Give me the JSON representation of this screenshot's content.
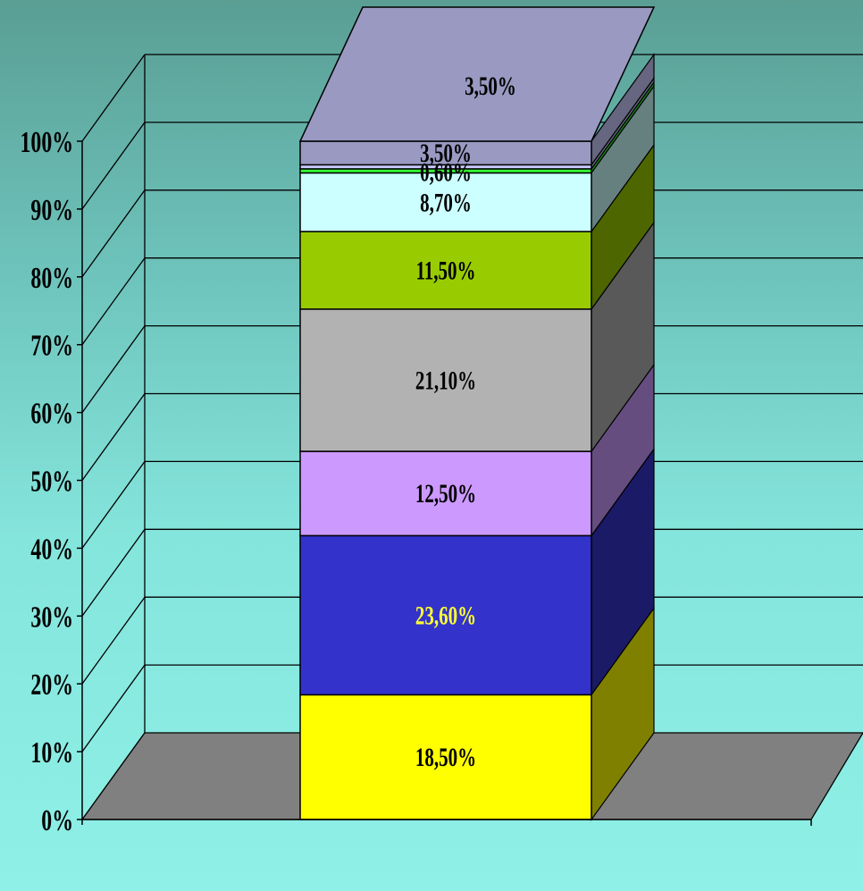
{
  "chart_data": {
    "type": "bar",
    "subtype": "100-percent-stacked-3d-column",
    "categories": [
      ""
    ],
    "ylim": [
      0,
      100
    ],
    "y_ticks": [
      "0%",
      "10%",
      "20%",
      "30%",
      "40%",
      "50%",
      "60%",
      "70%",
      "80%",
      "90%",
      "100%"
    ],
    "grid": true,
    "legend": "none",
    "series": [
      {
        "values": [
          18.5
        ],
        "label": "18,50%",
        "color": "#ffff00",
        "side_color": "#808000",
        "label_color": "#000000"
      },
      {
        "values": [
          23.6
        ],
        "label": "23,60%",
        "color": "#3333cc",
        "side_color": "#1a1a66",
        "label_color": "#ffff33"
      },
      {
        "values": [
          12.5
        ],
        "label": "12,50%",
        "color": "#cc99ff",
        "side_color": "#664d80",
        "label_color": "#000000"
      },
      {
        "values": [
          21.1
        ],
        "label": "21,10%",
        "color": "#b2b2b2",
        "side_color": "#595959",
        "label_color": "#000000"
      },
      {
        "values": [
          11.5
        ],
        "label": "11,50%",
        "color": "#99cc00",
        "side_color": "#4d6600",
        "label_color": "#000000"
      },
      {
        "values": [
          8.7
        ],
        "label": "8,70%",
        "color": "#ccffff",
        "side_color": "#668080",
        "label_color": "#000000"
      },
      {
        "values": [
          0.6
        ],
        "label": "",
        "color": "#33ff33",
        "side_color": "#1a801a",
        "label_color": "#000000"
      },
      {
        "values": [
          0.6
        ],
        "label": "0,60%",
        "color": "#ccccff",
        "side_color": "#666680",
        "label_color": "#000000"
      },
      {
        "values": [
          3.5
        ],
        "label": "3,50%",
        "color": "#9999c2",
        "side_color": "#666680",
        "label_color": "#000000"
      }
    ],
    "colors": {
      "floor": "#808080",
      "gridline": "#000000",
      "top_face": "#9999c2"
    }
  }
}
